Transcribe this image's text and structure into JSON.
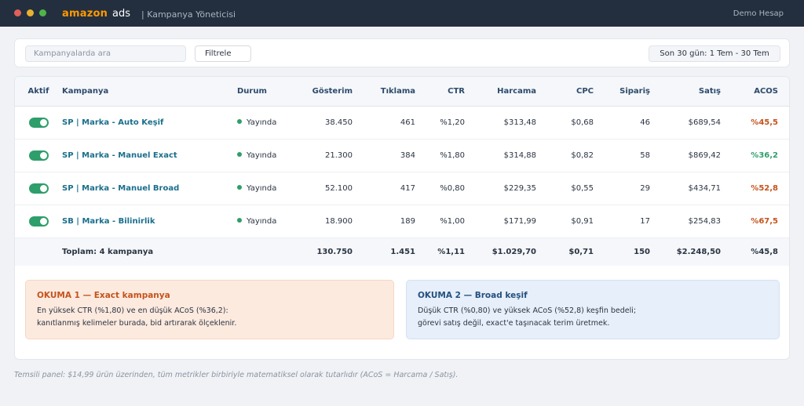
{
  "window": {
    "brand": "amazon",
    "brand_suffix": "ads",
    "title": "| Kampanya Yöneticisi",
    "account": "Demo Hesap"
  },
  "toolbar": {
    "search_placeholder": "Kampanyalarda ara",
    "filter_label": "Filtrele",
    "date_range": "Son 30 gün: 1 Tem - 30 Tem"
  },
  "table": {
    "headers": {
      "active": "Aktif",
      "campaign": "Kampanya",
      "status": "Durum",
      "impressions": "Gösterim",
      "clicks": "Tıklama",
      "ctr": "CTR",
      "spend": "Harcama",
      "cpc": "CPC",
      "orders": "Sipariş",
      "sales": "Satış",
      "acos": "ACOS"
    },
    "rows": [
      {
        "active": true,
        "name": "SP | Marka - Auto Keşif",
        "status": "Yayında",
        "impressions": "38.450",
        "clicks": "461",
        "ctr": "%1,20",
        "spend": "$313,48",
        "cpc": "$0,68",
        "orders": "46",
        "sales": "$689,54",
        "acos": "%45,5"
      },
      {
        "active": true,
        "name": "SP | Marka - Manuel Exact",
        "status": "Yayında",
        "impressions": "21.300",
        "clicks": "384",
        "ctr": "%1,80",
        "spend": "$314,88",
        "cpc": "$0,82",
        "orders": "58",
        "sales": "$869,42",
        "acos": "%36,2"
      },
      {
        "active": true,
        "name": "SP | Marka - Manuel Broad",
        "status": "Yayında",
        "impressions": "52.100",
        "clicks": "417",
        "ctr": "%0,80",
        "spend": "$229,35",
        "cpc": "$0,55",
        "orders": "29",
        "sales": "$434,71",
        "acos": "%52,8"
      },
      {
        "active": true,
        "name": "SB | Marka - Bilinirlik",
        "status": "Yayında",
        "impressions": "18.900",
        "clicks": "189",
        "ctr": "%1,00",
        "spend": "$171,99",
        "cpc": "$0,91",
        "orders": "17",
        "sales": "$254,83",
        "acos": "%67,5"
      }
    ],
    "total": {
      "label": "Toplam: 4 kampanya",
      "impressions": "130.750",
      "clicks": "1.451",
      "ctr": "%1,11",
      "spend": "$1.029,70",
      "cpc": "$0,71",
      "orders": "150",
      "sales": "$2.248,50",
      "acos": "%45,8"
    }
  },
  "insights": [
    {
      "title": "OKUMA 1 — Exact kampanya",
      "line1": "En yüksek CTR (%1,80) ve en düşük ACoS (%36,2):",
      "line2": "kanıtlanmış kelimeler burada, bid artırarak ölçeklenir."
    },
    {
      "title": "OKUMA 2 — Broad keşif",
      "line1": "Düşük CTR (%0,80) ve yüksek ACoS (%52,8) keşfin bedeli;",
      "line2": "görevi satış değil, exact'e taşınacak terim üretmek."
    }
  ],
  "footnote": "Temsili panel: $14,99 ürün üzerinden, tüm metrikler birbiriyle matematiksel olarak tutarlıdır (ACoS = Harcama / Satış).",
  "colors": {
    "titlebar": "#232f3e",
    "brand": "#ff9900",
    "active_green": "#2e9e6a",
    "acos_bad": "#c4531c",
    "link": "#1a6e8c"
  }
}
